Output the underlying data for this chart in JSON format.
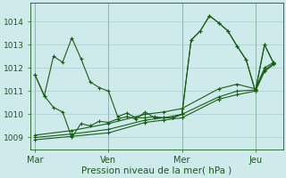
{
  "background_color": "#ceeaea",
  "grid_color": "#aacccc",
  "line_color": "#1a5c1a",
  "xlabel": "Pression niveau de la mer( hPa )",
  "ylim": [
    1008.5,
    1014.8
  ],
  "yticks": [
    1009,
    1010,
    1011,
    1012,
    1013,
    1014
  ],
  "xtick_labels": [
    "Mar",
    "Ven",
    "Mer",
    "Jeu"
  ],
  "xtick_positions": [
    0,
    8,
    16,
    24
  ],
  "jagged1_x": [
    0,
    1,
    2,
    3,
    4,
    5,
    6,
    7,
    8,
    9,
    10,
    11,
    12,
    13,
    14,
    15,
    16,
    17,
    18,
    19,
    20,
    21,
    22,
    23,
    24,
    25,
    26
  ],
  "jagged1_y": [
    1011.7,
    1010.8,
    1012.5,
    1012.25,
    1013.3,
    1012.4,
    1011.4,
    1011.15,
    1011.0,
    1009.9,
    1010.05,
    1009.85,
    1009.85,
    1009.9,
    1009.85,
    1009.85,
    1010.0,
    1013.2,
    1013.6,
    1014.25,
    1013.95,
    1013.6,
    1012.95,
    1012.35,
    1011.0,
    1013.0,
    1012.2
  ],
  "jagged2_x": [
    0,
    1,
    2,
    3,
    4,
    5,
    6,
    7,
    8,
    9,
    10,
    11,
    12,
    13,
    14,
    15,
    16,
    17,
    18,
    19,
    20,
    21,
    22,
    23,
    24,
    25,
    26
  ],
  "jagged2_y": [
    1011.7,
    1010.8,
    1010.3,
    1010.1,
    1009.0,
    1009.6,
    1009.5,
    1009.7,
    1009.65,
    1009.8,
    1009.9,
    1009.8,
    1010.1,
    1009.85,
    1009.85,
    1009.85,
    1010.0,
    1013.2,
    1013.6,
    1014.25,
    1013.95,
    1013.6,
    1012.95,
    1012.35,
    1011.0,
    1013.0,
    1012.2
  ],
  "smooth1_x": [
    0,
    4,
    8,
    12,
    14,
    16,
    20,
    22,
    24,
    25,
    26
  ],
  "smooth1_y": [
    1008.9,
    1009.05,
    1009.2,
    1009.65,
    1009.75,
    1009.85,
    1010.65,
    1010.85,
    1011.0,
    1011.85,
    1012.15
  ],
  "smooth2_x": [
    0,
    4,
    8,
    12,
    14,
    16,
    20,
    22,
    24,
    25,
    26
  ],
  "smooth2_y": [
    1009.0,
    1009.15,
    1009.35,
    1009.75,
    1009.85,
    1010.0,
    1010.75,
    1011.0,
    1011.05,
    1011.9,
    1012.2
  ],
  "smooth3_x": [
    0,
    4,
    8,
    12,
    14,
    16,
    20,
    22,
    24,
    25,
    26
  ],
  "smooth3_y": [
    1009.1,
    1009.3,
    1009.6,
    1010.0,
    1010.1,
    1010.25,
    1011.1,
    1011.3,
    1011.1,
    1012.0,
    1012.25
  ]
}
